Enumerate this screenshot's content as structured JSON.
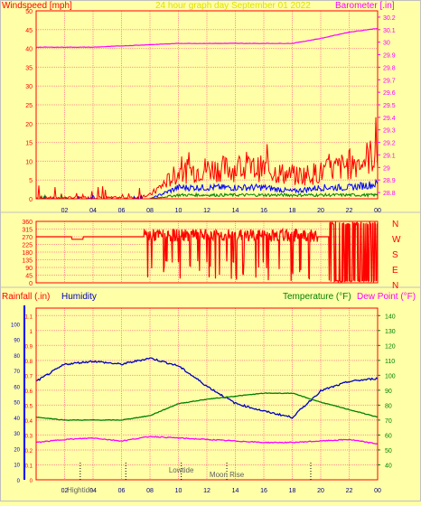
{
  "header": {
    "left_label": "Windspeed [mph]",
    "center_label": "24 hour graph day   September 01 2022",
    "right_label": "Barometer [.in]"
  },
  "colors": {
    "background": "#ffffa8",
    "border_red": "#ff0000",
    "grid_red": "#ff9090",
    "wind_max": "#ff0000",
    "wind_avg": "#0000ff",
    "wind_min": "#008000",
    "barometer": "#ff00ff",
    "humidity": "#0000c0",
    "temperature": "#008000",
    "dewpoint": "#ff00ff",
    "rain_axis": "#ff0000",
    "direction": "#ff0000",
    "header_yellow": "#e0e000"
  },
  "panels": {
    "wind": {
      "left_ticks": [
        "50",
        "45",
        "40",
        "35",
        "30",
        "25",
        "20",
        "15",
        "10",
        "5",
        "0"
      ],
      "right_ticks": [
        "30.2",
        "30.1",
        "30",
        "29.9",
        "29.8",
        "29.7",
        "29.6",
        "29.5",
        "29.4",
        "29.3",
        "29.2",
        "29.1",
        "29",
        "28.9",
        "28.8"
      ],
      "x_ticks": [
        "02",
        "04",
        "06",
        "08",
        "10",
        "12",
        "14",
        "16",
        "18",
        "20",
        "22",
        "00"
      ]
    },
    "direction": {
      "left_ticks": [
        "360",
        "315",
        "270",
        "225",
        "180",
        "135",
        "90",
        "45",
        "0"
      ],
      "compass": [
        "N",
        "W",
        "S",
        "E",
        "N"
      ]
    },
    "humidity": {
      "left_label": "Rainfall (.in)",
      "humidity_label": "Humidity",
      "temp_label": "Temperature (°F)",
      "dew_label": "Dew Point (°F)",
      "hum_ticks": [
        "100",
        "90",
        "80",
        "70",
        "60",
        "50",
        "40",
        "30",
        "20",
        "10",
        "0"
      ],
      "rain_ticks": [
        "1.1",
        "1",
        "0.9",
        "0.8",
        "0.7",
        "0.6",
        "0.5",
        "0.4",
        "0.3",
        "0.2",
        "0.1",
        "0"
      ],
      "temp_ticks": [
        "140",
        "130",
        "120",
        "110",
        "100",
        "90",
        "80",
        "70",
        "60",
        "50",
        "40"
      ],
      "x_ticks": [
        "02",
        "04",
        "06",
        "08",
        "10",
        "12",
        "14",
        "16",
        "18",
        "20",
        "22",
        "00"
      ],
      "events": {
        "hightide": "Hightide",
        "lowtide": "Lowtide",
        "moonrise": "Moon Rise"
      }
    }
  },
  "chart_data": [
    {
      "type": "line",
      "title": "24 hour graph day   September 01 2022",
      "ylabel": "Windspeed [mph]",
      "y2label": "Barometer [.in]",
      "x": [
        "00",
        "02",
        "04",
        "06",
        "08",
        "10",
        "12",
        "14",
        "16",
        "18",
        "20",
        "22",
        "00"
      ],
      "ylim": [
        0,
        50
      ],
      "y2lim": [
        28.75,
        30.25
      ],
      "series": [
        {
          "name": "Barometer [.in]",
          "axis": "right",
          "values": [
            29.96,
            29.96,
            29.96,
            29.97,
            29.98,
            29.99,
            29.99,
            29.99,
            29.99,
            29.99,
            30.03,
            30.08,
            30.11
          ]
        },
        {
          "axis": "left",
          "values": [
            1,
            0,
            1,
            0,
            1,
            7,
            8,
            8,
            8,
            6,
            7,
            9,
            12
          ]
        },
        {
          "axis": "left",
          "values": [
            0,
            0,
            0,
            0,
            0,
            3,
            3,
            3,
            3,
            2,
            3,
            3,
            4
          ]
        },
        {
          "axis": "left",
          "values": [
            0,
            0,
            0,
            0,
            0,
            1,
            1,
            1,
            1,
            1,
            1,
            1,
            1
          ]
        }
      ]
    },
    {
      "type": "line",
      "x": [
        "00",
        "02",
        "04",
        "06",
        "08",
        "10",
        "12",
        "14",
        "16",
        "18",
        "20",
        "22",
        "00"
      ],
      "ylim": [
        0,
        360
      ],
      "series": [
        {
          "values": [
            270,
            270,
            270,
            270,
            280,
            270,
            270,
            270,
            270,
            270,
            10,
            10,
            10
          ]
        }
      ]
    },
    {
      "type": "line",
      "x": [
        "00",
        "02",
        "04",
        "06",
        "08",
        "10",
        "12",
        "14",
        "16",
        "18",
        "20",
        "22",
        "00"
      ],
      "ylim": [
        0,
        110
      ],
      "y2lim": [
        30,
        145
      ],
      "series": [
        {
          "name": "Humidity",
          "axis": "left",
          "values": [
            63,
            74,
            76,
            74,
            78,
            73,
            60,
            49,
            44,
            40,
            57,
            63,
            65
          ]
        },
        {
          "name": "Temperature (°F)",
          "axis": "right",
          "values": [
            72,
            70,
            70,
            70,
            73,
            81,
            84,
            86,
            88,
            88,
            82,
            77,
            72
          ]
        },
        {
          "name": "Dew Point (°F)",
          "axis": "right",
          "values": [
            55,
            57,
            58,
            56,
            59,
            58,
            57,
            56,
            55,
            55,
            56,
            57,
            54
          ]
        },
        {
          "name": "Rainfall (.in)",
          "axis": "rain",
          "values": [
            0,
            0,
            0,
            0,
            0,
            0,
            0,
            0,
            0,
            0,
            0,
            0,
            0
          ]
        }
      ]
    }
  ]
}
